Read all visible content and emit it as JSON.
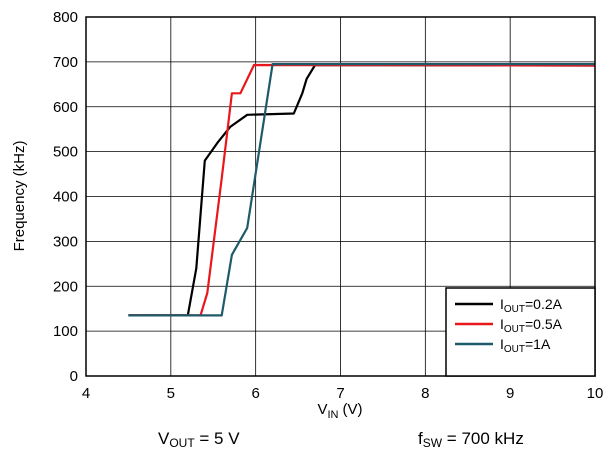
{
  "chart_data": {
    "type": "line",
    "xlabel_main": "V",
    "xlabel_sub": "IN",
    "xlabel_unit": "(V)",
    "ylabel": "Frequency (kHz)",
    "xlim": [
      4,
      10
    ],
    "ylim": [
      0,
      800
    ],
    "x_ticks": [
      "4",
      "5",
      "6",
      "7",
      "8",
      "9",
      "10"
    ],
    "y_ticks": [
      "0",
      "100",
      "200",
      "300",
      "400",
      "500",
      "600",
      "700",
      "800"
    ],
    "grid": true,
    "legend_position": "bottom-right",
    "series": [
      {
        "label_main": "I",
        "label_sub": "OUT",
        "label_rest": "=0.2A",
        "color": "#000000",
        "points": [
          [
            4.5,
            135
          ],
          [
            5.2,
            135
          ],
          [
            5.3,
            240
          ],
          [
            5.4,
            480
          ],
          [
            5.55,
            520
          ],
          [
            5.7,
            555
          ],
          [
            5.9,
            582
          ],
          [
            6.45,
            585
          ],
          [
            6.55,
            630
          ],
          [
            6.6,
            662
          ],
          [
            6.7,
            693
          ],
          [
            10,
            692
          ]
        ]
      },
      {
        "label_main": "I",
        "label_sub": "OUT",
        "label_rest": "=0.5A",
        "color": "#e8171c",
        "points": [
          [
            4.5,
            135
          ],
          [
            5.35,
            135
          ],
          [
            5.43,
            185
          ],
          [
            5.6,
            440
          ],
          [
            5.72,
            630
          ],
          [
            5.82,
            630
          ],
          [
            5.98,
            693
          ],
          [
            10,
            692
          ]
        ]
      },
      {
        "label_main": "I",
        "label_sub": "OUT",
        "label_rest": "=1A",
        "color": "#1f5a6a",
        "points": [
          [
            4.5,
            135
          ],
          [
            5.6,
            135
          ],
          [
            5.72,
            270
          ],
          [
            5.9,
            330
          ],
          [
            6.2,
            695
          ],
          [
            10,
            695
          ]
        ]
      }
    ]
  },
  "captions": {
    "left": {
      "main": "V",
      "sub": "OUT",
      "rest": " = 5 V"
    },
    "right": {
      "main": "f",
      "sub": "SW",
      "rest": " = 700 kHz"
    }
  }
}
